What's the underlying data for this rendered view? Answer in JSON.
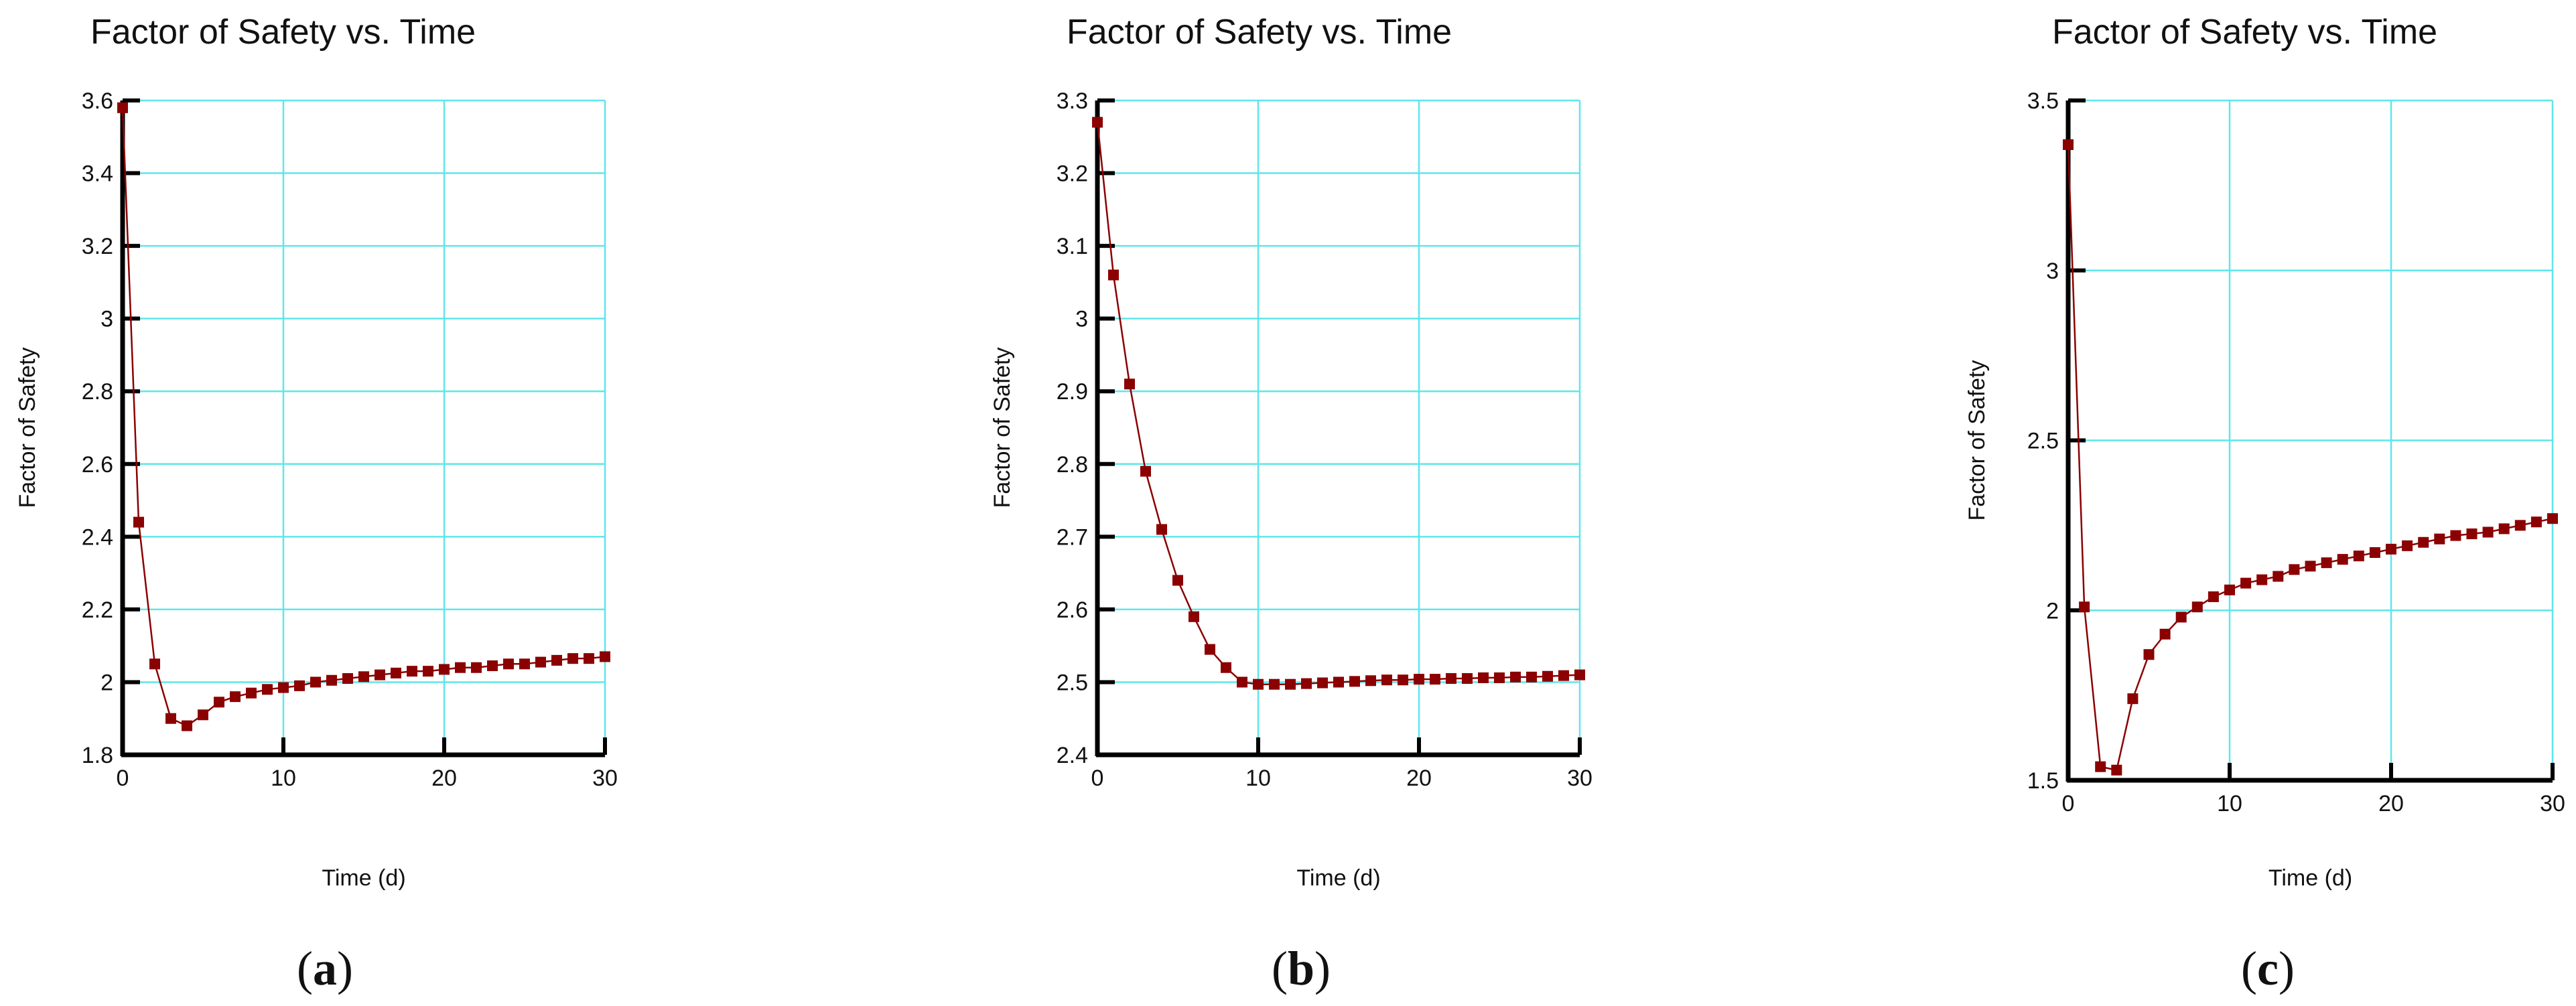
{
  "chart_data": [
    {
      "type": "line",
      "panel": "a",
      "title": "Factor of Safety vs. Time",
      "xlabel": "Time (d)",
      "ylabel": "Factor of Safety",
      "xlim": [
        0,
        30
      ],
      "ylim": [
        1.8,
        3.6
      ],
      "xticks": [
        0,
        10,
        20,
        30
      ],
      "yticks": [
        1.8,
        2,
        2.2,
        2.4,
        2.6,
        2.8,
        3,
        3.2,
        3.4,
        3.6
      ],
      "ytick_labels": [
        "1.8",
        "2",
        "2.2",
        "2.4",
        "2.6",
        "2.8",
        "3",
        "3.2",
        "3.4",
        "3.6"
      ],
      "grid": true,
      "color": "#8b0000",
      "caption": "a",
      "series": [
        {
          "name": "Factor of Safety",
          "x": [
            0,
            1,
            2,
            3,
            4,
            5,
            6,
            7,
            8,
            9,
            10,
            11,
            12,
            13,
            14,
            15,
            16,
            17,
            18,
            19,
            20,
            21,
            22,
            23,
            24,
            25,
            26,
            27,
            28,
            29,
            30
          ],
          "values": [
            3.58,
            2.44,
            2.05,
            1.9,
            1.88,
            1.91,
            1.945,
            1.96,
            1.97,
            1.98,
            1.985,
            1.99,
            2.0,
            2.005,
            2.01,
            2.015,
            2.02,
            2.025,
            2.03,
            2.03,
            2.035,
            2.04,
            2.04,
            2.045,
            2.05,
            2.05,
            2.055,
            2.06,
            2.065,
            2.065,
            2.07
          ]
        }
      ]
    },
    {
      "type": "line",
      "panel": "b",
      "title": "Factor of Safety vs. Time",
      "xlabel": "Time (d)",
      "ylabel": "Factor of Safety",
      "xlim": [
        0,
        30
      ],
      "ylim": [
        2.4,
        3.3
      ],
      "xticks": [
        0,
        10,
        20,
        30
      ],
      "yticks": [
        2.4,
        2.5,
        2.6,
        2.7,
        2.8,
        2.9,
        3.0,
        3.1,
        3.2,
        3.3
      ],
      "ytick_labels": [
        "2.4",
        "2.5",
        "2.6",
        "2.7",
        "2.8",
        "2.9",
        "3",
        "3.1",
        "3.2",
        "3.3"
      ],
      "grid": true,
      "color": "#8b0000",
      "caption": "b",
      "series": [
        {
          "name": "Factor of Safety",
          "x": [
            0,
            1,
            2,
            3,
            4,
            5,
            6,
            7,
            8,
            9,
            10,
            11,
            12,
            13,
            14,
            15,
            16,
            17,
            18,
            19,
            20,
            21,
            22,
            23,
            24,
            25,
            26,
            27,
            28,
            29,
            30
          ],
          "values": [
            3.27,
            3.06,
            2.91,
            2.79,
            2.71,
            2.64,
            2.59,
            2.545,
            2.52,
            2.5,
            2.497,
            2.497,
            2.497,
            2.498,
            2.499,
            2.5,
            2.501,
            2.502,
            2.503,
            2.503,
            2.504,
            2.504,
            2.505,
            2.505,
            2.506,
            2.506,
            2.507,
            2.507,
            2.508,
            2.509,
            2.51
          ]
        }
      ]
    },
    {
      "type": "line",
      "panel": "c",
      "title": "Factor of Safety vs. Time",
      "xlabel": "Time (d)",
      "ylabel": "Factor of Safety",
      "xlim": [
        0,
        30
      ],
      "ylim": [
        1.5,
        3.5
      ],
      "xticks": [
        0,
        10,
        20,
        30
      ],
      "yticks": [
        1.5,
        2,
        2.5,
        3,
        3.5
      ],
      "ytick_labels": [
        "1.5",
        "2",
        "2.5",
        "3",
        "3.5"
      ],
      "grid": true,
      "color": "#8b0000",
      "caption": "c",
      "series": [
        {
          "name": "Factor of Safety",
          "x": [
            0,
            1,
            2,
            3,
            4,
            5,
            6,
            7,
            8,
            9,
            10,
            11,
            12,
            13,
            14,
            15,
            16,
            17,
            18,
            19,
            20,
            21,
            22,
            23,
            24,
            25,
            26,
            27,
            28,
            29,
            30
          ],
          "values": [
            3.37,
            2.01,
            1.54,
            1.53,
            1.74,
            1.87,
            1.93,
            1.98,
            2.01,
            2.04,
            2.06,
            2.08,
            2.09,
            2.1,
            2.12,
            2.13,
            2.14,
            2.15,
            2.16,
            2.17,
            2.18,
            2.19,
            2.2,
            2.21,
            2.22,
            2.225,
            2.23,
            2.24,
            2.25,
            2.26,
            2.27
          ]
        }
      ]
    }
  ]
}
